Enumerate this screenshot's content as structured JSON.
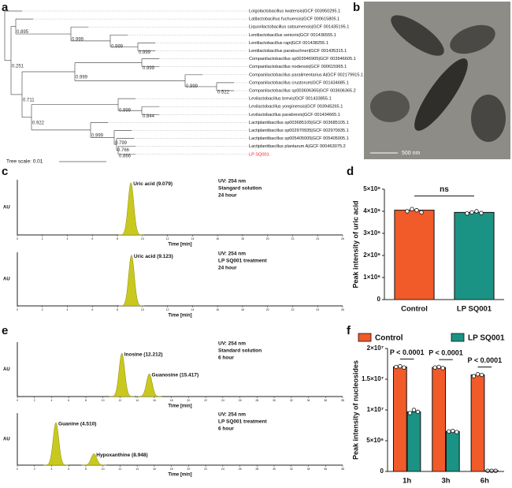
{
  "panel_labels": [
    "a",
    "b",
    "c",
    "d",
    "e",
    "f"
  ],
  "tree": {
    "leaves": [
      {
        "name": "Loigolactobacillus iwatensis|GCF 003950295.1"
      },
      {
        "name": "Latilactobacillus fuchuensis|GCF 000615805.1"
      },
      {
        "name": "Liquorilactobacillus satsumensis|GCF 001435195.1"
      },
      {
        "name": "Lentilactobacillus senioris|GCF 001436555.1"
      },
      {
        "name": "Lentilactobacillus rapi|GCF 001438255.1"
      },
      {
        "name": "Lentilactobacillus parabuchneri|GCF 001435315.1"
      },
      {
        "name": "Companilactobacillus sp003946905|GCF 003946605.1"
      },
      {
        "name": "Companilactobacillus nodensis|GCF 000615965.1"
      },
      {
        "name": "Companilactobacillus paralimentarius A|GCF 002179915.1"
      },
      {
        "name": "Companilactobacillus crustorum|GCF 001434685.1"
      },
      {
        "name": "Companilactobacillus sp003606365|GCF 003606365.2"
      },
      {
        "name": "Levilactobacillus brevis|GCF 001433855.1"
      },
      {
        "name": "Levilactobacillus yonginensis|GCF 003945265.1"
      },
      {
        "name": "Levilactobacillus parabrevis|GCF 001434665.1"
      },
      {
        "name": "Lactiplantibacillus sp003685105|GCF 003685105.1"
      },
      {
        "name": "Lactiplantibacillus sp002970935|GCF 002970935.1"
      },
      {
        "name": "Lactiplantibacillus sp005405005|GCF 005405005.1"
      },
      {
        "name": "Lactiplantibacillus plantarum A|GCF 000463075.2"
      },
      {
        "name": "LP SQ001",
        "color": "#e8202a"
      }
    ],
    "bootstraps": [
      0.251,
      0.895,
      0.999,
      0.999,
      0.999,
      0.999,
      0.999,
      0.999,
      0.522,
      0.711,
      0.999,
      0.844,
      0.922,
      0.999,
      0.799,
      0.766,
      0.866
    ],
    "scale_label": "Tree scale: 0.01"
  },
  "micrograph": {
    "scale_label": "500 nm"
  },
  "chart_data": [
    {
      "type": "chromatogram",
      "ylabel": "AU",
      "xlabel": "Time [min]",
      "color": "#c9c81e",
      "annotations": [
        "UV: 254 nm",
        "Stangard solution",
        "24 hour"
      ],
      "peaks": {
        "labels": [
          "Uric acid (9.079)"
        ],
        "times": [
          9.079
        ],
        "heights": [
          95
        ]
      },
      "xlim": [
        0,
        26
      ],
      "ylim": [
        0,
        100
      ],
      "xticks": [
        0,
        2,
        4,
        6,
        8,
        10,
        12,
        14,
        16,
        18,
        20,
        22,
        24,
        26
      ]
    },
    {
      "type": "chromatogram",
      "ylabel": "AU",
      "xlabel": "Time [min]",
      "color": "#c9c81e",
      "annotations": [
        "UV: 254 nm",
        "LP SQ001 treatment",
        "24 hour"
      ],
      "peaks": {
        "labels": [
          "Uric acid (9.123)"
        ],
        "times": [
          9.123
        ],
        "heights": [
          95
        ]
      },
      "xlim": [
        0,
        26
      ],
      "ylim": [
        0,
        100
      ],
      "xticks": [
        0,
        2,
        4,
        6,
        8,
        10,
        12,
        14,
        16,
        18,
        20,
        22,
        24,
        26
      ]
    },
    {
      "type": "bar",
      "ylabel": "Peak intensity of uric acid",
      "categories": [
        "Control",
        "LP SQ001"
      ],
      "values": [
        4050000,
        3950000
      ],
      "colors": [
        "#f15a29",
        "#1b9384"
      ],
      "points": [
        [
          4000000,
          4100000,
          4050000,
          3950000
        ],
        [
          3900000,
          3950000,
          4000000,
          3920000
        ]
      ],
      "ylim": [
        0,
        5000000
      ],
      "yticks": [
        0,
        {
          "value": 1000000,
          "label": "1×10⁶"
        },
        {
          "value": 2000000,
          "label": "2×10⁶"
        },
        {
          "value": 3000000,
          "label": "3×10⁶"
        },
        {
          "value": 4000000,
          "label": "4×10⁶"
        },
        {
          "value": 5000000,
          "label": "5×10⁶"
        }
      ],
      "annotations": [
        "ns"
      ]
    },
    {
      "type": "chromatogram",
      "ylabel": "AU",
      "xlabel": "Time [min]",
      "color": "#c9c81e",
      "annotations": [
        "UV: 254 nm",
        "Standard solution",
        "6 hour"
      ],
      "peaks": {
        "labels": [
          "Inosine (12.212)",
          "Guanosine (15.417)"
        ],
        "times": [
          12.212,
          15.417
        ],
        "heights": [
          80,
          42
        ]
      },
      "xlim": [
        0,
        38
      ],
      "ylim": [
        0,
        100
      ],
      "xticks": [
        0,
        2,
        4,
        6,
        8,
        10,
        12,
        14,
        16,
        18,
        20,
        22,
        24,
        26,
        28,
        30,
        32,
        34,
        36,
        38
      ]
    },
    {
      "type": "chromatogram",
      "ylabel": "AU",
      "xlabel": "Time [min]",
      "color": "#c9c81e",
      "annotations": [
        "UV: 254 nm",
        "LP SQ001 treatment",
        "6 hour"
      ],
      "peaks": {
        "labels": [
          "Guanine (4.510)",
          "Hypoxanthine (8.948)"
        ],
        "times": [
          4.51,
          8.948
        ],
        "heights": [
          82,
          22
        ]
      },
      "xlim": [
        0,
        38
      ],
      "ylim": [
        0,
        100
      ],
      "xticks": [
        0,
        2,
        4,
        6,
        8,
        10,
        12,
        14,
        16,
        18,
        20,
        22,
        24,
        26,
        28,
        30,
        32,
        34,
        36,
        38
      ]
    },
    {
      "type": "grouped_bar",
      "ylabel": "Peak intensity of nucleosides",
      "legend": "top",
      "categories": [
        "1h",
        "3h",
        "6h"
      ],
      "series": [
        {
          "name": "Control",
          "color": "#f15a29",
          "values": [
            17000000,
            16900000,
            15700000
          ],
          "points": [
            [
              17000000,
              17100000,
              16900000
            ],
            [
              16900000,
              17000000,
              16800000
            ],
            [
              15500000,
              15800000,
              15700000
            ]
          ]
        },
        {
          "name": "LP SQ001",
          "color": "#1b9384",
          "values": [
            9700000,
            6500000,
            100000
          ],
          "points": [
            [
              9500000,
              10000000,
              9700000
            ],
            [
              6500000,
              6600000,
              6400000
            ],
            [
              100000,
              100000,
              100000
            ]
          ]
        }
      ],
      "ylim": [
        0,
        20000000
      ],
      "yticks": [
        0,
        {
          "value": 5000000,
          "label": "5×10⁶"
        },
        {
          "value": 10000000,
          "label": "1×10⁷"
        },
        {
          "value": 15000000,
          "label": "1.5×10⁷"
        },
        {
          "value": 20000000,
          "label": "2×10⁷"
        }
      ],
      "annotations": [
        "P < 0.0001",
        "P < 0.0001",
        "P < 0.0001"
      ]
    }
  ]
}
